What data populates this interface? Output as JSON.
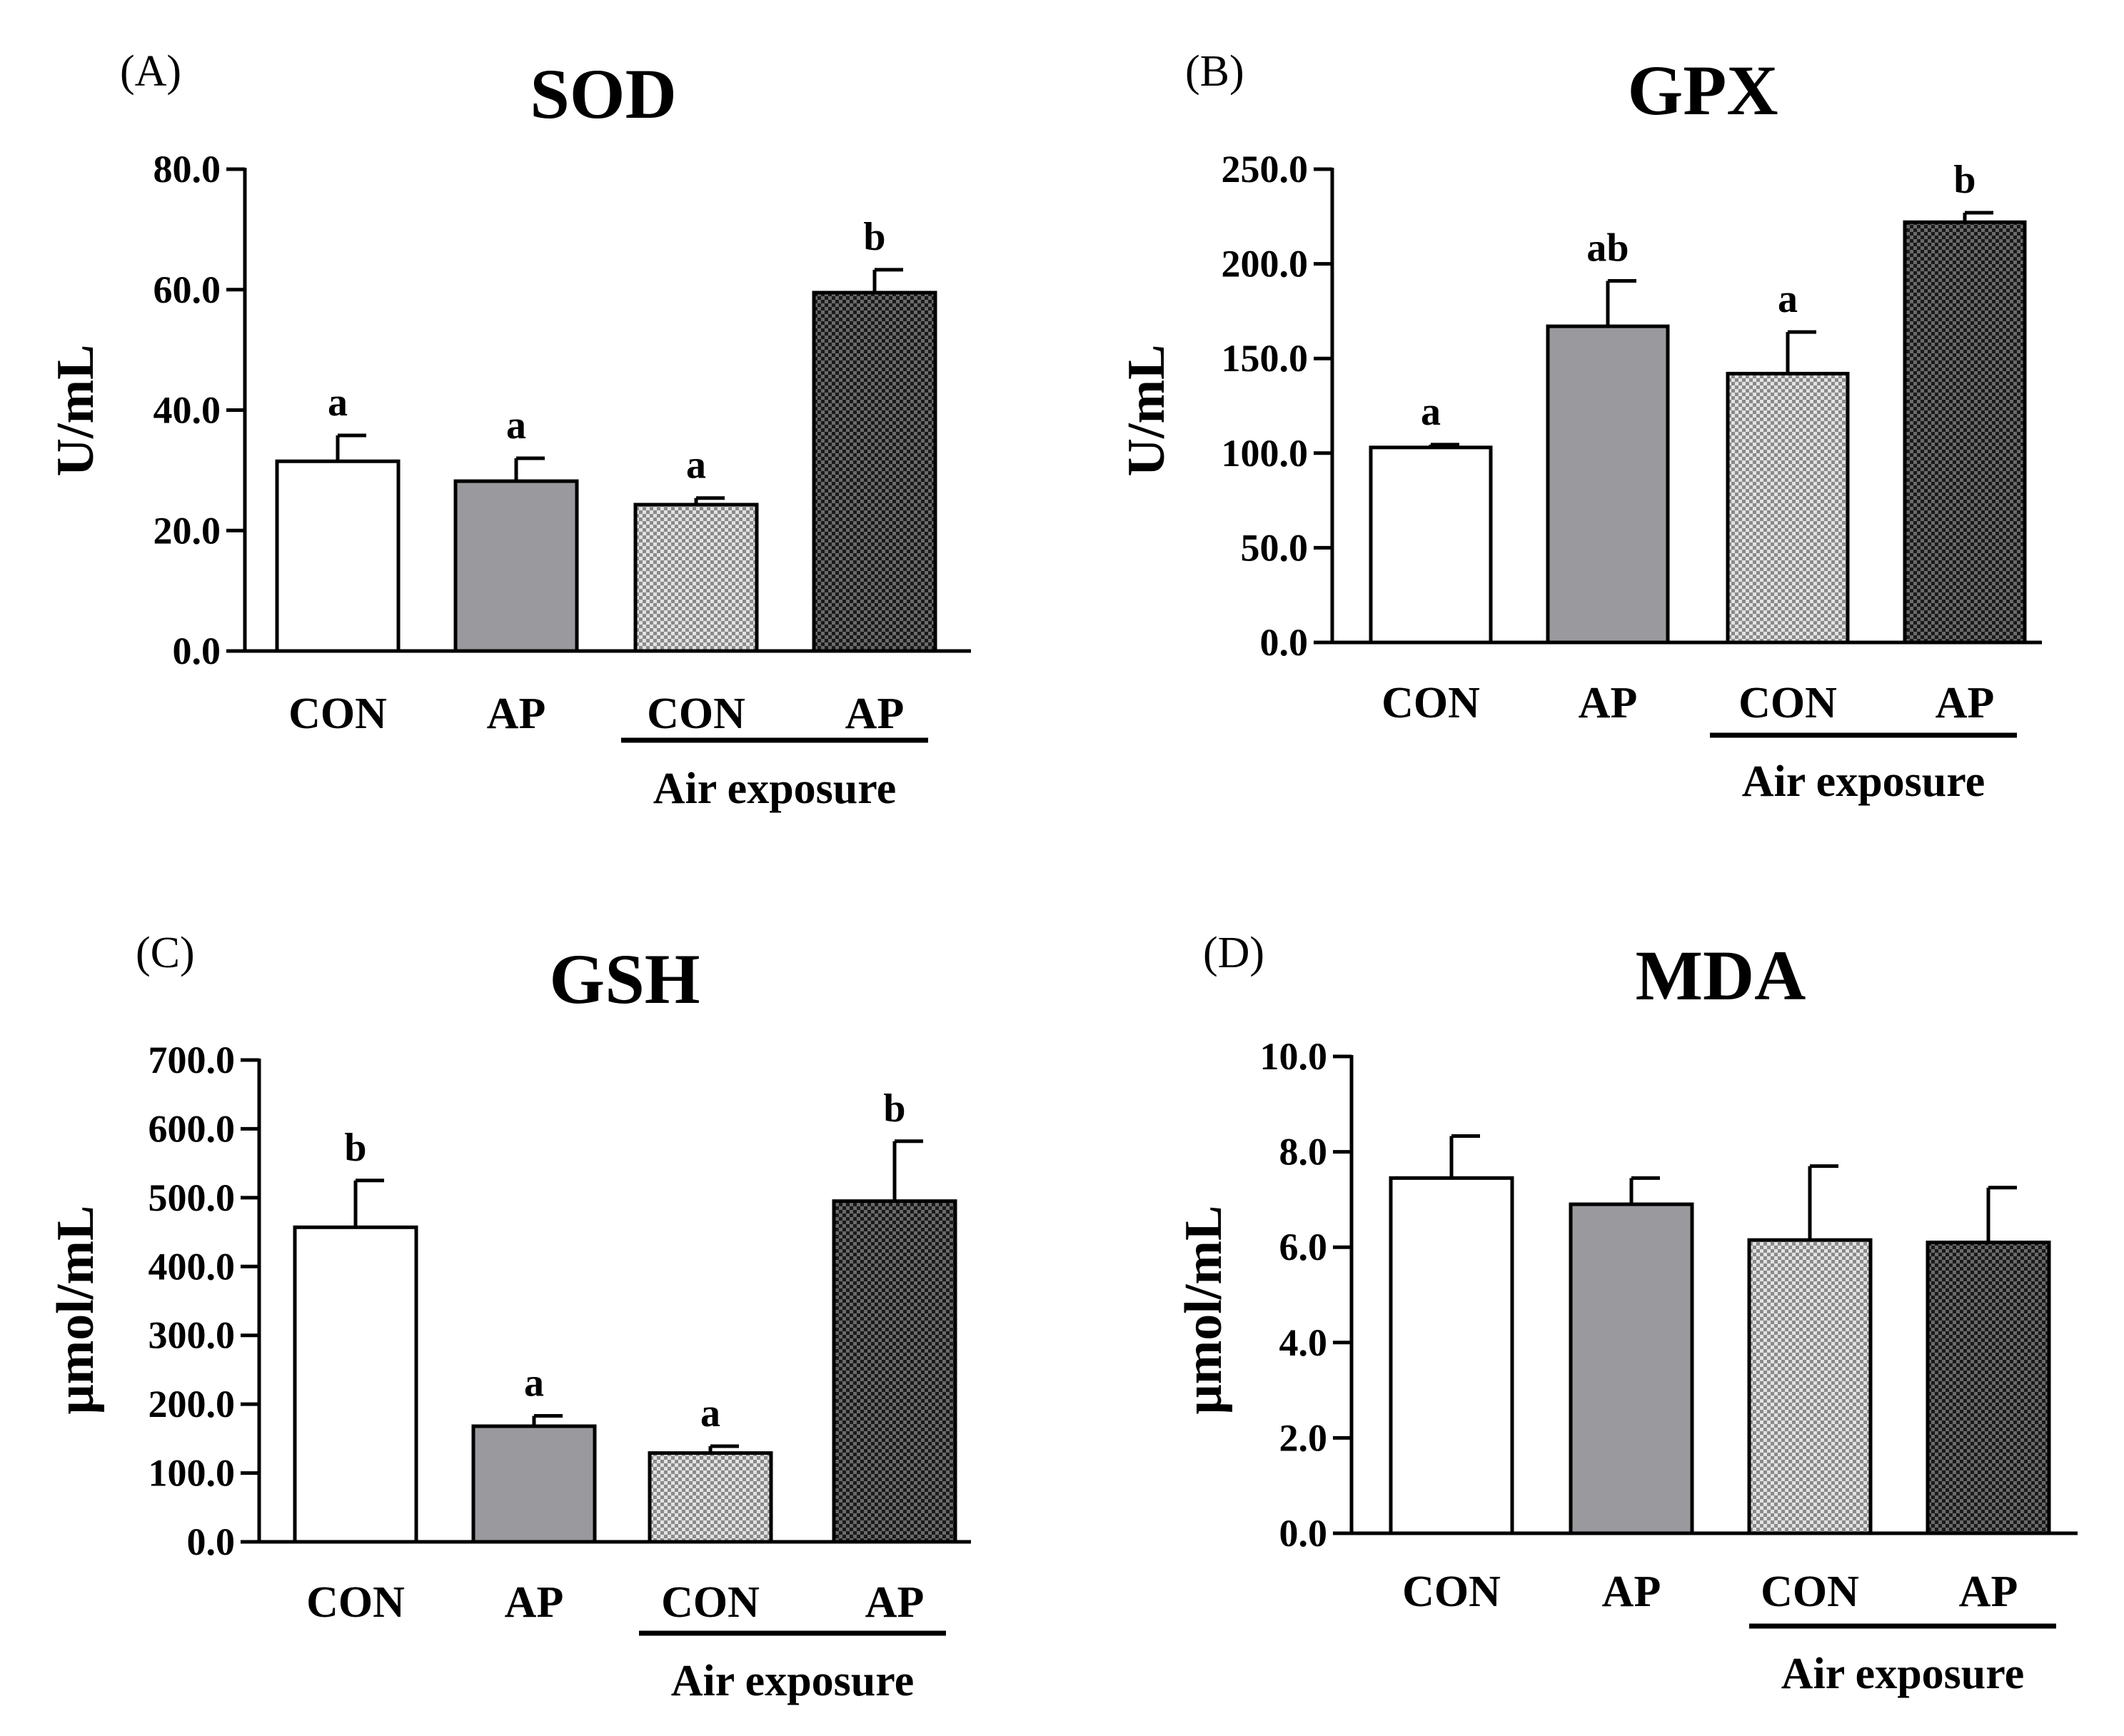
{
  "chart_data": [
    {
      "type": "bar",
      "panel_label": "(A)",
      "title": "SOD",
      "ylabel": "U/mL",
      "ylim": [
        0,
        80
      ],
      "yticks": [
        "0.0",
        "20.0",
        "40.0",
        "60.0",
        "80.0"
      ],
      "categories": [
        "CON",
        "AP",
        "CON",
        "AP"
      ],
      "group_label": "Air exposure",
      "values": [
        31.5,
        28.2,
        24.3,
        59.5
      ],
      "errors": [
        4.3,
        3.8,
        1.1,
        3.8
      ],
      "significance": [
        "a",
        "a",
        "a",
        "b"
      ],
      "fills": [
        "white",
        "gray",
        "light-checker",
        "dark-checker"
      ]
    },
    {
      "type": "bar",
      "panel_label": "(B)",
      "title": "GPX",
      "ylabel": "U/mL",
      "ylim": [
        0,
        250
      ],
      "yticks": [
        "0.0",
        "50.0",
        "100.0",
        "150.0",
        "200.0",
        "250.0"
      ],
      "categories": [
        "CON",
        "AP",
        "CON",
        "AP"
      ],
      "group_label": "Air exposure",
      "values": [
        103,
        167,
        142,
        222
      ],
      "errors": [
        1.5,
        24,
        22,
        5
      ],
      "significance": [
        "a",
        "ab",
        "a",
        "b"
      ],
      "fills": [
        "white",
        "gray",
        "light-checker",
        "dark-checker"
      ]
    },
    {
      "type": "bar",
      "panel_label": "(C)",
      "title": "GSH",
      "ylabel": "μmol/mL",
      "ylim": [
        0,
        700
      ],
      "yticks": [
        "0.0",
        "100.0",
        "200.0",
        "300.0",
        "400.0",
        "500.0",
        "600.0",
        "700.0"
      ],
      "categories": [
        "CON",
        "AP",
        "CON",
        "AP"
      ],
      "group_label": "Air exposure",
      "values": [
        457,
        168,
        129,
        495
      ],
      "errors": [
        68,
        15,
        10,
        87
      ],
      "significance": [
        "b",
        "a",
        "a",
        "b"
      ],
      "fills": [
        "white",
        "gray",
        "light-checker",
        "dark-checker"
      ]
    },
    {
      "type": "bar",
      "panel_label": "(D)",
      "title": "MDA",
      "ylabel": "μmol/mL",
      "ylim": [
        0,
        10
      ],
      "yticks": [
        "0.0",
        "2.0",
        "4.0",
        "6.0",
        "8.0",
        "10.0"
      ],
      "categories": [
        "CON",
        "AP",
        "CON",
        "AP"
      ],
      "group_label": "Air exposure",
      "values": [
        7.45,
        6.9,
        6.15,
        6.1
      ],
      "errors": [
        0.88,
        0.55,
        1.55,
        1.15
      ],
      "significance": [
        "",
        "",
        "",
        ""
      ],
      "fills": [
        "white",
        "gray",
        "light-checker",
        "dark-checker"
      ]
    }
  ]
}
